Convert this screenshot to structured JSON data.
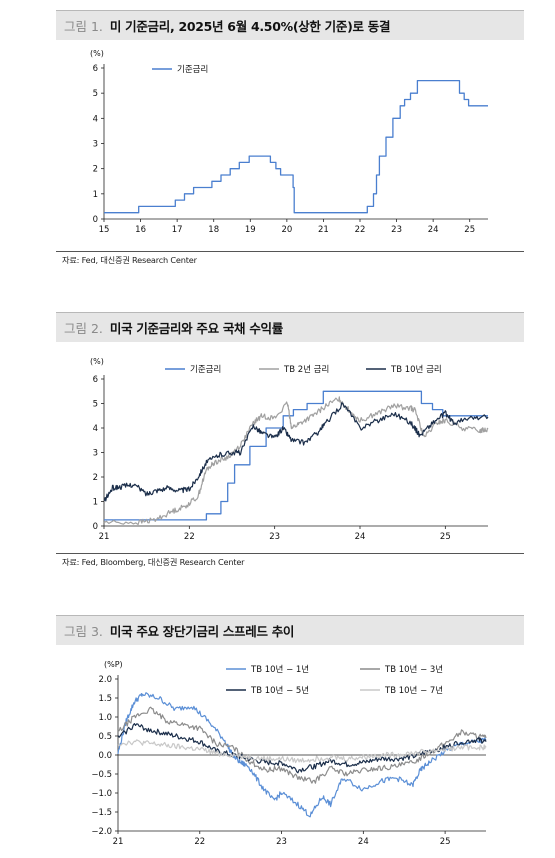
{
  "fig1": {
    "num": "그림 1.",
    "title": "미 기준금리, 2025년 6월 4.50%(상한 기준)로 동결",
    "source": "자료: Fed, 대신증권 Research Center"
  },
  "fig2": {
    "num": "그림 2.",
    "title": "미국 기준금리와 주요 국채 수익률",
    "source": "자료: Fed, Bloomberg, 대신증권 Research Center"
  },
  "fig3": {
    "num": "그림 3.",
    "title": "미국 주요 장단기금리 스프레드 추이"
  },
  "chart_data": [
    {
      "type": "line",
      "unit": "(%)",
      "ylim": [
        0,
        6
      ],
      "yticks": [
        0,
        1,
        2,
        3,
        4,
        5,
        6
      ],
      "xlim": [
        15,
        25.5
      ],
      "xticks": [
        15,
        16,
        17,
        18,
        19,
        20,
        21,
        22,
        23,
        24,
        25
      ],
      "legend_position": "top-left",
      "series": [
        {
          "name": "기준금리",
          "color": "#4a7fcf",
          "step": true,
          "x": [
            15,
            15.95,
            16.95,
            17.2,
            17.45,
            17.95,
            18.2,
            18.45,
            18.7,
            18.97,
            19.55,
            19.7,
            19.83,
            20.17,
            20.2,
            22.2,
            22.37,
            22.45,
            22.53,
            22.71,
            22.9,
            23.1,
            23.22,
            23.38,
            23.57,
            24.72,
            24.85,
            24.97,
            25.5
          ],
          "y": [
            0.25,
            0.5,
            0.75,
            1.0,
            1.25,
            1.5,
            1.75,
            2.0,
            2.25,
            2.5,
            2.25,
            2.0,
            1.75,
            1.25,
            0.25,
            0.5,
            1.0,
            1.75,
            2.5,
            3.25,
            4.0,
            4.5,
            4.75,
            5.0,
            5.5,
            5.0,
            4.75,
            4.5,
            4.5
          ]
        }
      ]
    },
    {
      "type": "line",
      "unit": "(%)",
      "ylim": [
        0,
        6
      ],
      "yticks": [
        0,
        1,
        2,
        3,
        4,
        5,
        6
      ],
      "xlim": [
        21,
        25.5
      ],
      "xticks": [
        21,
        22,
        23,
        24,
        25
      ],
      "legend_position": "top",
      "series": [
        {
          "name": "기준금리",
          "color": "#4a7fcf",
          "step": true,
          "x": [
            21,
            22.2,
            22.37,
            22.45,
            22.53,
            22.71,
            22.9,
            23.1,
            23.22,
            23.38,
            23.57,
            24.72,
            24.85,
            24.97,
            25.5
          ],
          "y": [
            0.25,
            0.5,
            1.0,
            1.75,
            2.5,
            3.25,
            4.0,
            4.5,
            4.75,
            5.0,
            5.5,
            5.0,
            4.75,
            4.5,
            4.5
          ]
        },
        {
          "name": "TB 2년 금리",
          "color": "#a0a0a0",
          "x": [
            21,
            21.4,
            21.6,
            21.8,
            21.95,
            22.1,
            22.2,
            22.3,
            22.45,
            22.6,
            22.75,
            22.85,
            23.0,
            23.15,
            23.2,
            23.3,
            23.45,
            23.6,
            23.75,
            23.85,
            24.0,
            24.2,
            24.4,
            24.6,
            24.65,
            24.75,
            24.9,
            25.0,
            25.2,
            25.4,
            25.5
          ],
          "y": [
            0.15,
            0.15,
            0.25,
            0.6,
            0.8,
            1.2,
            2.3,
            2.6,
            2.8,
            3.3,
            4.2,
            4.5,
            4.4,
            5.0,
            4.0,
            4.2,
            4.5,
            4.9,
            5.2,
            4.8,
            4.3,
            4.6,
            4.9,
            4.8,
            4.7,
            3.6,
            4.2,
            4.3,
            4.0,
            3.9,
            3.95
          ]
        },
        {
          "name": "TB 10년 금리",
          "color": "#1b2e4a",
          "x": [
            21,
            21.1,
            21.2,
            21.35,
            21.5,
            21.6,
            21.75,
            21.9,
            22.0,
            22.1,
            22.2,
            22.35,
            22.5,
            22.6,
            22.75,
            22.85,
            23.0,
            23.1,
            23.2,
            23.35,
            23.5,
            23.6,
            23.8,
            24.0,
            24.2,
            24.4,
            24.6,
            24.7,
            24.85,
            25.0,
            25.1,
            25.3,
            25.5
          ],
          "y": [
            1.0,
            1.55,
            1.6,
            1.7,
            1.3,
            1.45,
            1.55,
            1.45,
            1.5,
            2.0,
            2.6,
            2.9,
            3.0,
            3.0,
            4.1,
            3.8,
            3.6,
            4.0,
            3.5,
            3.4,
            3.8,
            4.2,
            5.0,
            4.0,
            4.3,
            4.6,
            4.2,
            3.7,
            4.2,
            4.6,
            4.2,
            4.4,
            4.45
          ]
        }
      ]
    },
    {
      "type": "line",
      "unit": "(%P)",
      "ylim": [
        -2.0,
        2.0
      ],
      "yticks": [
        -2.0,
        -1.5,
        -1.0,
        -0.5,
        0.0,
        0.5,
        1.0,
        1.5,
        2.0
      ],
      "xlim": [
        21,
        25.5
      ],
      "xticks": [
        21,
        22,
        23,
        24,
        25
      ],
      "legend_position": "top",
      "series": [
        {
          "name": "TB 10년 − 1년",
          "color": "#5b8fd6",
          "x": [
            21,
            21.1,
            21.2,
            21.3,
            21.5,
            21.7,
            21.9,
            22.1,
            22.3,
            22.4,
            22.5,
            22.6,
            22.75,
            22.9,
            23.0,
            23.2,
            23.35,
            23.5,
            23.6,
            23.75,
            24.0,
            24.2,
            24.4,
            24.6,
            24.7,
            24.8,
            25.0,
            25.2,
            25.4,
            25.5
          ],
          "y": [
            0.05,
            0.9,
            1.4,
            1.6,
            1.5,
            1.2,
            1.3,
            0.9,
            0.4,
            0.0,
            -0.2,
            -0.3,
            -0.8,
            -1.2,
            -1.0,
            -1.3,
            -1.6,
            -1.1,
            -1.3,
            -0.6,
            -0.9,
            -0.7,
            -0.6,
            -0.8,
            -0.4,
            -0.2,
            0.1,
            0.3,
            0.35,
            0.4
          ]
        },
        {
          "name": "TB 10년 − 3년",
          "color": "#8c8c8c",
          "x": [
            21,
            21.2,
            21.4,
            21.6,
            21.8,
            22.0,
            22.2,
            22.4,
            22.6,
            22.8,
            23.0,
            23.2,
            23.4,
            23.6,
            23.8,
            24.0,
            24.2,
            24.4,
            24.6,
            24.8,
            25.0,
            25.2,
            25.4,
            25.5
          ],
          "y": [
            0.6,
            1.0,
            1.2,
            0.9,
            0.8,
            0.7,
            0.3,
            0.2,
            -0.15,
            -0.4,
            -0.35,
            -0.6,
            -0.7,
            -0.35,
            -0.5,
            -0.4,
            -0.35,
            -0.3,
            -0.2,
            0.05,
            0.3,
            0.6,
            0.5,
            0.45
          ]
        },
        {
          "name": "TB 10년 − 5년",
          "color": "#1b2e4a",
          "x": [
            21,
            21.2,
            21.4,
            21.6,
            21.8,
            22.0,
            22.2,
            22.4,
            22.6,
            22.8,
            23.0,
            23.2,
            23.4,
            23.6,
            23.8,
            24.0,
            24.2,
            24.4,
            24.6,
            24.8,
            25.0,
            25.2,
            25.4,
            25.5
          ],
          "y": [
            0.45,
            0.8,
            0.65,
            0.55,
            0.45,
            0.35,
            0.1,
            0.0,
            -0.1,
            -0.2,
            -0.2,
            -0.4,
            -0.3,
            -0.15,
            -0.25,
            -0.2,
            -0.1,
            -0.1,
            -0.05,
            0.1,
            0.2,
            0.35,
            0.4,
            0.35
          ]
        },
        {
          "name": "TB 10년 − 7년",
          "color": "#c8c8c8",
          "x": [
            21,
            21.2,
            21.4,
            21.6,
            21.8,
            22.0,
            22.2,
            22.4,
            22.6,
            22.8,
            23.0,
            23.2,
            23.4,
            23.6,
            23.8,
            24.0,
            24.2,
            24.4,
            24.6,
            24.8,
            25.0,
            25.2,
            25.4,
            25.5
          ],
          "y": [
            0.3,
            0.35,
            0.3,
            0.25,
            0.2,
            0.15,
            0.05,
            0.0,
            -0.05,
            -0.1,
            -0.1,
            -0.15,
            -0.1,
            -0.05,
            -0.1,
            -0.05,
            0.0,
            0.0,
            0.05,
            0.1,
            0.15,
            0.2,
            0.2,
            0.2
          ]
        }
      ]
    }
  ]
}
